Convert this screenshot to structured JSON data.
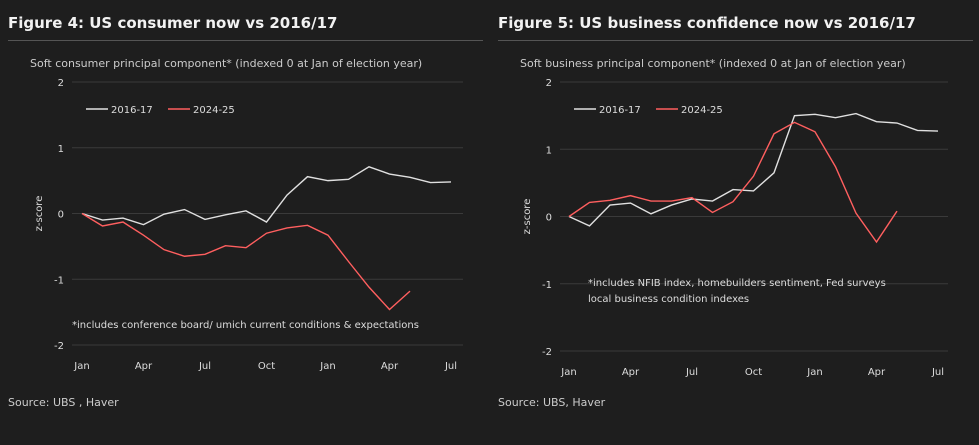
{
  "chart_data": [
    {
      "type": "line",
      "title": "Figure 4: US consumer now vs 2016/17",
      "subtitle": "Soft consumer principal component* (indexed 0 at Jan of election year)",
      "ylabel": "z-score",
      "ylim": [
        -2,
        2
      ],
      "yticks": [
        "2",
        "1",
        "0",
        "-1",
        "-2"
      ],
      "xticks": [
        "Jan",
        "Apr",
        "Jul",
        "Oct",
        "Jan",
        "Apr",
        "Jul"
      ],
      "grid": true,
      "legend": "top-left",
      "note": [
        "*includes conference board/ umich current conditions & expectations"
      ],
      "source": "Source: UBS , Haver",
      "series": [
        {
          "name": "2016-17",
          "color": "#e0e0e0",
          "values": [
            0,
            -0.1,
            -0.07,
            -0.17,
            -0.01,
            0.06,
            -0.09,
            -0.02,
            0.04,
            -0.13,
            0.28,
            0.56,
            0.5,
            0.52,
            0.71,
            0.6,
            0.55,
            0.47,
            0.48
          ]
        },
        {
          "name": "2024-25",
          "color": "#ff5f5f",
          "values": [
            0,
            -0.19,
            -0.13,
            -0.33,
            -0.55,
            -0.65,
            -0.62,
            -0.49,
            -0.52,
            -0.3,
            -0.22,
            -0.18,
            -0.33,
            -0.73,
            -1.12,
            -1.46,
            -1.18
          ]
        }
      ]
    },
    {
      "type": "line",
      "title": "Figure 5: US business confidence now vs 2016/17",
      "subtitle": "Soft business principal component* (indexed 0 at Jan of election year)",
      "ylabel": "z-score",
      "ylim": [
        -2,
        2
      ],
      "yticks": [
        "2",
        "1",
        "0",
        "-1",
        "-2"
      ],
      "xticks": [
        "Jan",
        "Apr",
        "Jul",
        "Oct",
        "Jan",
        "Apr",
        "Jul"
      ],
      "grid": true,
      "legend": "top-left",
      "note": [
        "*includes NFIB index, homebuilders sentiment, Fed surveys",
        "local business condition indexes"
      ],
      "source": "Source: UBS, Haver",
      "series": [
        {
          "name": "2016-17",
          "color": "#e0e0e0",
          "values": [
            0,
            -0.14,
            0.17,
            0.2,
            0.04,
            0.17,
            0.26,
            0.23,
            0.4,
            0.38,
            0.65,
            1.5,
            1.52,
            1.47,
            1.53,
            1.41,
            1.39,
            1.28,
            1.27
          ]
        },
        {
          "name": "2024-25",
          "color": "#ff5f5f",
          "values": [
            0,
            0.21,
            0.24,
            0.31,
            0.23,
            0.23,
            0.28,
            0.06,
            0.22,
            0.6,
            1.23,
            1.4,
            1.26,
            0.74,
            0.05,
            -0.38,
            0.08
          ]
        }
      ]
    }
  ]
}
